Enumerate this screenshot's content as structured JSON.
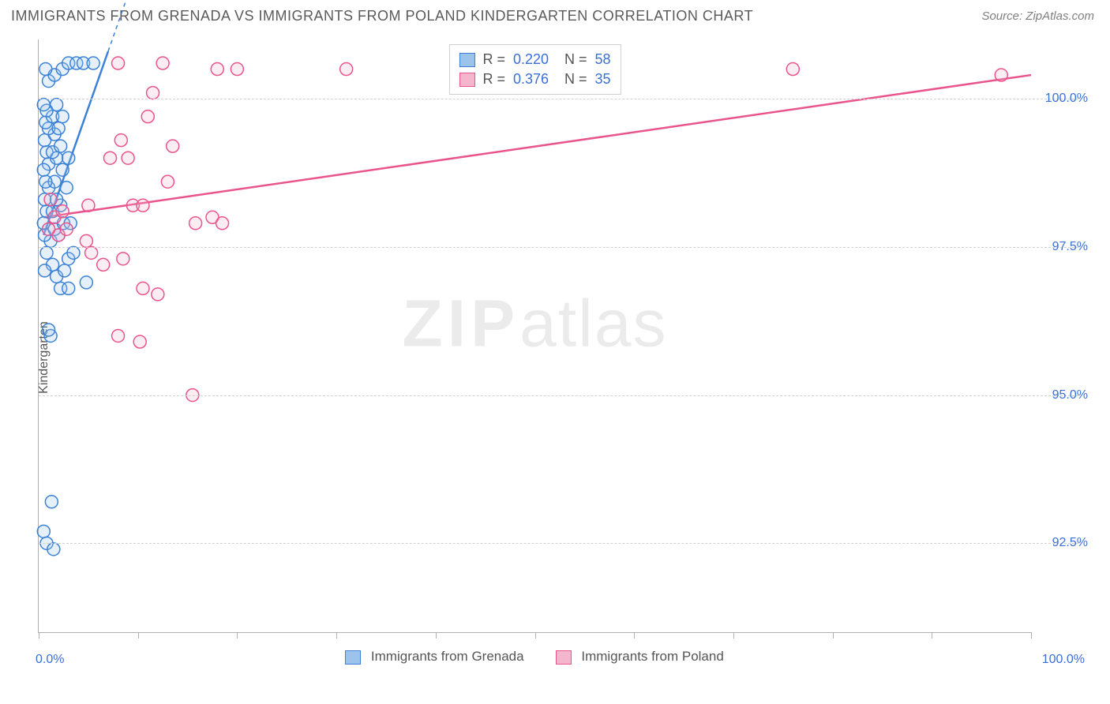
{
  "header": {
    "title": "IMMIGRANTS FROM GRENADA VS IMMIGRANTS FROM POLAND KINDERGARTEN CORRELATION CHART",
    "source": "Source: ZipAtlas.com"
  },
  "chart": {
    "type": "scatter",
    "ylabel": "Kindergarten",
    "xlim": [
      0,
      100
    ],
    "ylim": [
      91,
      101
    ],
    "x_ticks": [
      0,
      10,
      20,
      30,
      40,
      50,
      60,
      70,
      80,
      90,
      100
    ],
    "x_tick_labels": {
      "0": "0.0%",
      "100": "100.0%"
    },
    "y_gridlines": [
      92.5,
      95.0,
      97.5,
      100.0
    ],
    "y_tick_labels": [
      "92.5%",
      "95.0%",
      "97.5%",
      "100.0%"
    ],
    "background_color": "#ffffff",
    "grid_color": "#d0d0d0",
    "axis_color": "#b0b0b0",
    "tick_label_color": "#3b6fd6",
    "label_color": "#555555",
    "marker_radius": 8,
    "marker_stroke_width": 1.5,
    "marker_fill_opacity": 0.25,
    "trend_line_width": 2.5,
    "watermark": {
      "text_bold": "ZIP",
      "text_rest": "atlas"
    },
    "series": [
      {
        "id": "grenada",
        "label": "Immigrants from Grenada",
        "color_stroke": "#3b82d6",
        "color_fill": "#9cc3ec",
        "R": "0.220",
        "N": "58",
        "trend": {
          "x1": 0.5,
          "y1": 97.7,
          "x2": 7.0,
          "y2": 100.8
        },
        "points": [
          [
            0.5,
            92.7
          ],
          [
            0.8,
            92.5
          ],
          [
            1.5,
            92.4
          ],
          [
            1.3,
            93.2
          ],
          [
            1.2,
            96.0
          ],
          [
            1.0,
            96.1
          ],
          [
            2.2,
            96.8
          ],
          [
            3.0,
            96.8
          ],
          [
            4.8,
            96.9
          ],
          [
            1.4,
            97.2
          ],
          [
            1.8,
            97.0
          ],
          [
            0.6,
            97.1
          ],
          [
            2.6,
            97.1
          ],
          [
            3.0,
            97.3
          ],
          [
            3.5,
            97.4
          ],
          [
            0.8,
            97.4
          ],
          [
            1.2,
            97.6
          ],
          [
            0.6,
            97.7
          ],
          [
            2.0,
            97.7
          ],
          [
            1.6,
            97.8
          ],
          [
            2.5,
            97.9
          ],
          [
            3.2,
            97.9
          ],
          [
            0.5,
            97.9
          ],
          [
            0.8,
            98.1
          ],
          [
            1.4,
            98.1
          ],
          [
            2.2,
            98.2
          ],
          [
            0.6,
            98.3
          ],
          [
            1.8,
            98.3
          ],
          [
            1.0,
            98.5
          ],
          [
            2.8,
            98.5
          ],
          [
            1.6,
            98.6
          ],
          [
            0.7,
            98.6
          ],
          [
            2.4,
            98.8
          ],
          [
            1.0,
            98.9
          ],
          [
            0.5,
            98.8
          ],
          [
            1.8,
            99.0
          ],
          [
            3.0,
            99.0
          ],
          [
            0.8,
            99.1
          ],
          [
            1.4,
            99.1
          ],
          [
            2.2,
            99.2
          ],
          [
            0.6,
            99.3
          ],
          [
            1.6,
            99.4
          ],
          [
            1.0,
            99.5
          ],
          [
            2.0,
            99.5
          ],
          [
            0.7,
            99.6
          ],
          [
            1.4,
            99.7
          ],
          [
            2.4,
            99.7
          ],
          [
            0.8,
            99.8
          ],
          [
            1.8,
            99.9
          ],
          [
            0.5,
            99.9
          ],
          [
            1.0,
            100.3
          ],
          [
            1.6,
            100.4
          ],
          [
            2.4,
            100.5
          ],
          [
            0.7,
            100.5
          ],
          [
            3.0,
            100.6
          ],
          [
            3.8,
            100.6
          ],
          [
            4.5,
            100.6
          ],
          [
            5.5,
            100.6
          ]
        ]
      },
      {
        "id": "poland",
        "label": "Immigrants from Poland",
        "color_stroke": "#e9548c",
        "color_fill": "#f5b6cd",
        "R": "0.376",
        "N": "35",
        "trend": {
          "x1": 0.5,
          "y1": 98.0,
          "x2": 100.0,
          "y2": 100.4
        },
        "points": [
          [
            15.5,
            95.0
          ],
          [
            10.2,
            95.9
          ],
          [
            8.0,
            96.0
          ],
          [
            12.0,
            96.7
          ],
          [
            10.5,
            96.8
          ],
          [
            6.5,
            97.2
          ],
          [
            8.5,
            97.3
          ],
          [
            5.3,
            97.4
          ],
          [
            4.8,
            97.6
          ],
          [
            2.0,
            97.7
          ],
          [
            2.8,
            97.8
          ],
          [
            1.0,
            97.8
          ],
          [
            15.8,
            97.9
          ],
          [
            17.5,
            98.0
          ],
          [
            18.5,
            97.9
          ],
          [
            1.6,
            98.0
          ],
          [
            9.5,
            98.2
          ],
          [
            10.5,
            98.2
          ],
          [
            2.4,
            98.1
          ],
          [
            5.0,
            98.2
          ],
          [
            1.2,
            98.3
          ],
          [
            13.0,
            98.6
          ],
          [
            7.2,
            99.0
          ],
          [
            9.0,
            99.0
          ],
          [
            13.5,
            99.2
          ],
          [
            8.3,
            99.3
          ],
          [
            11.0,
            99.7
          ],
          [
            11.5,
            100.1
          ],
          [
            18.0,
            100.5
          ],
          [
            20.0,
            100.5
          ],
          [
            31.0,
            100.5
          ],
          [
            8.0,
            100.6
          ],
          [
            12.5,
            100.6
          ],
          [
            76.0,
            100.5
          ],
          [
            97.0,
            100.4
          ]
        ]
      }
    ],
    "bottom_legend": [
      {
        "swatch_fill": "#9cc3ec",
        "swatch_stroke": "#3b82d6",
        "label": "Immigrants from Grenada"
      },
      {
        "swatch_fill": "#f5b6cd",
        "swatch_stroke": "#e9548c",
        "label": "Immigrants from Poland"
      }
    ]
  }
}
